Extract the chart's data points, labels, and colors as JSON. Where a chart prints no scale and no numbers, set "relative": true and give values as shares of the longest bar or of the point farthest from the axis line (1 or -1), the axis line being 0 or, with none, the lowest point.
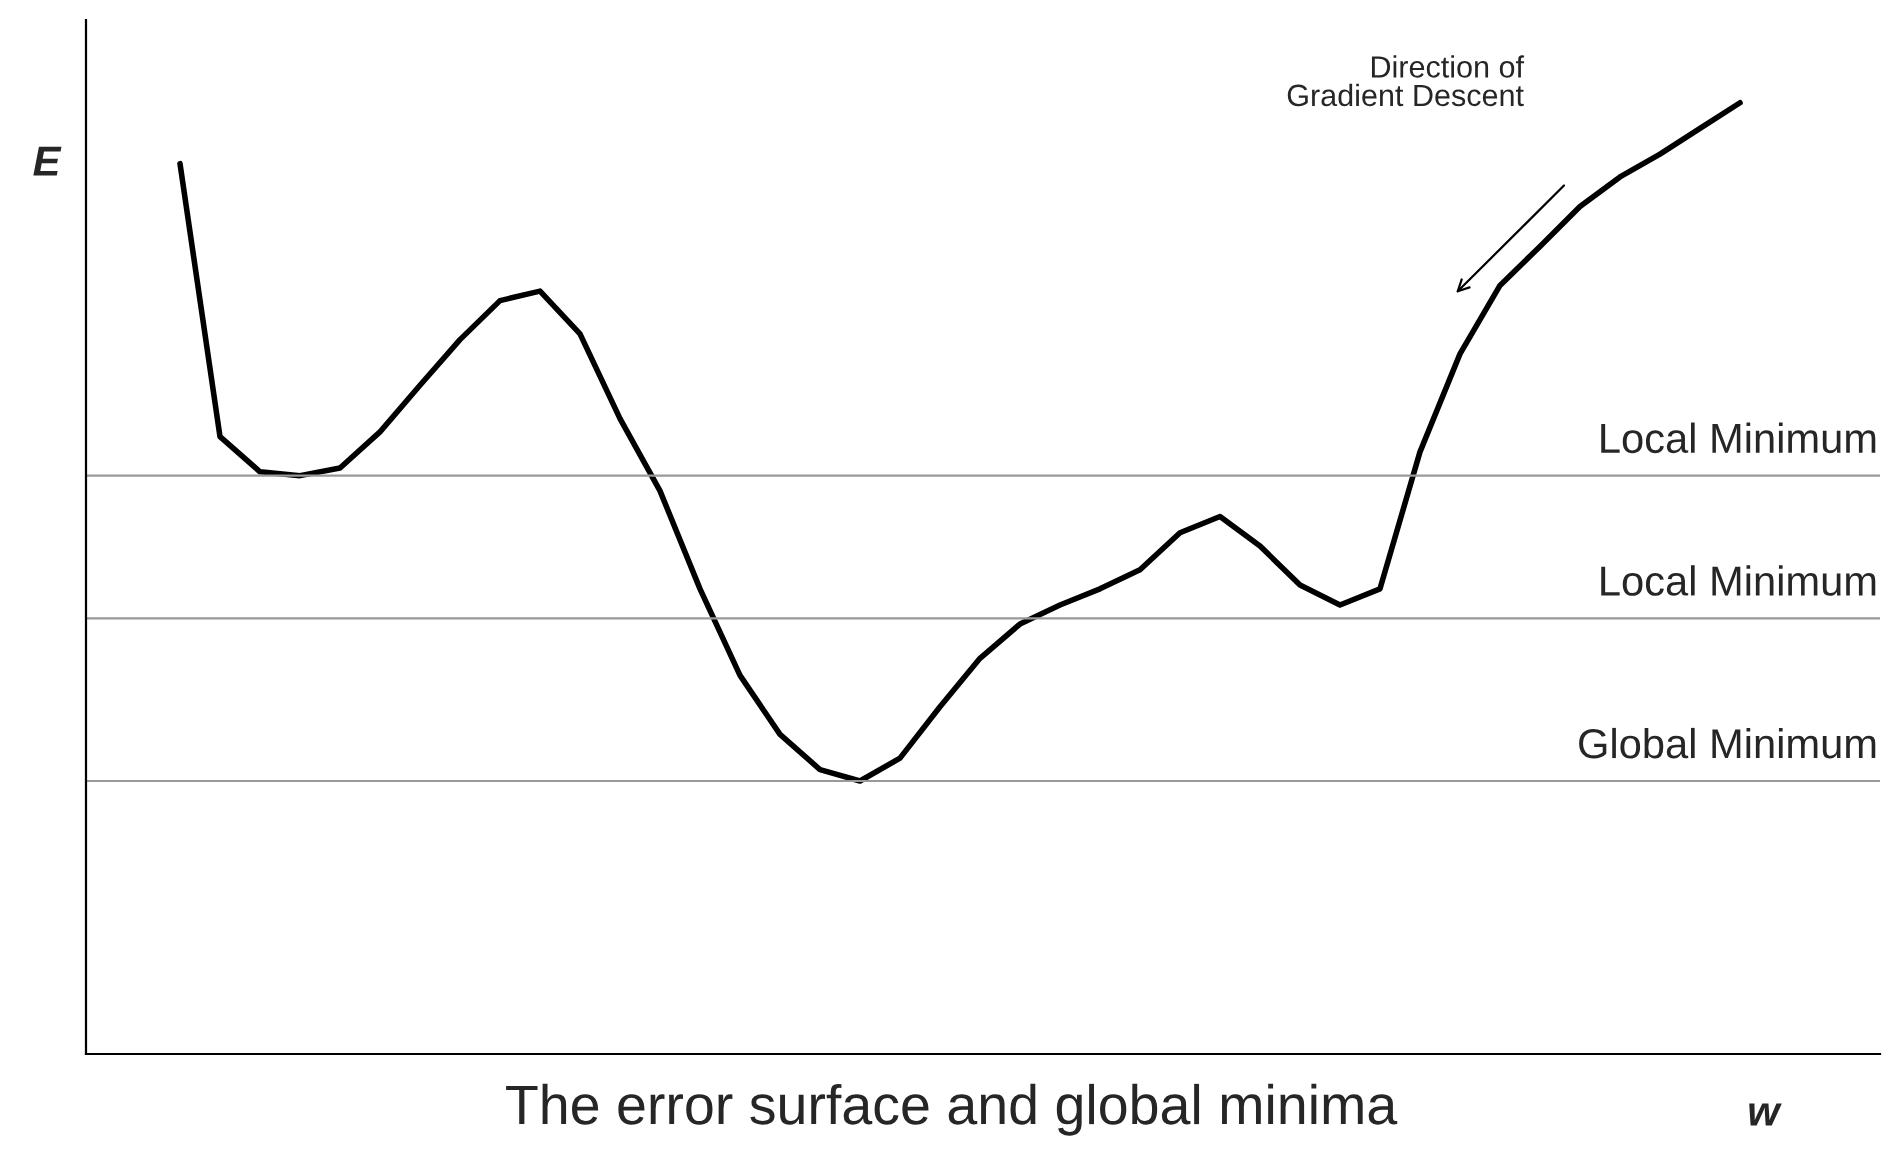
{
  "chart_data": {
    "type": "line",
    "relative": true,
    "title": "The error surface and global minima",
    "xlabel": "w",
    "ylabel": "E",
    "categories": [
      null,
      null,
      null,
      null,
      null,
      null,
      null,
      null,
      null,
      null,
      null,
      null,
      null,
      null,
      null,
      null,
      null,
      null,
      null,
      null,
      null,
      null,
      null,
      null,
      null,
      null,
      null,
      null,
      null,
      null,
      null,
      null,
      null,
      null,
      null,
      null,
      null,
      null,
      null,
      null
    ],
    "series": [
      {
        "color": "#000000",
        "values": [
          0.936,
          0.649,
          0.612,
          0.608,
          0.616,
          0.654,
          0.703,
          0.751,
          0.792,
          0.802,
          0.757,
          0.668,
          0.592,
          0.489,
          0.398,
          0.336,
          0.299,
          0.287,
          0.311,
          0.365,
          0.416,
          0.452,
          0.472,
          0.489,
          0.509,
          0.548,
          0.565,
          0.534,
          0.493,
          0.472,
          0.489,
          0.633,
          0.736,
          0.808,
          0.849,
          0.891,
          0.922,
          0.946,
          0.973,
          1
        ]
      }
    ],
    "ref_lines": [
      {
        "axis": "y",
        "value": 0.608,
        "label": "Local Minimum",
        "color": "#999999"
      },
      {
        "axis": "y",
        "value": 0.458,
        "label": "Local Minimum",
        "color": "#999999"
      },
      {
        "axis": "y",
        "value": 0.287,
        "label": "Global Minimum",
        "color": "#999999"
      }
    ],
    "annotations": [
      "Direction of\nGradient Descent"
    ],
    "grid": false,
    "legend": false
  }
}
